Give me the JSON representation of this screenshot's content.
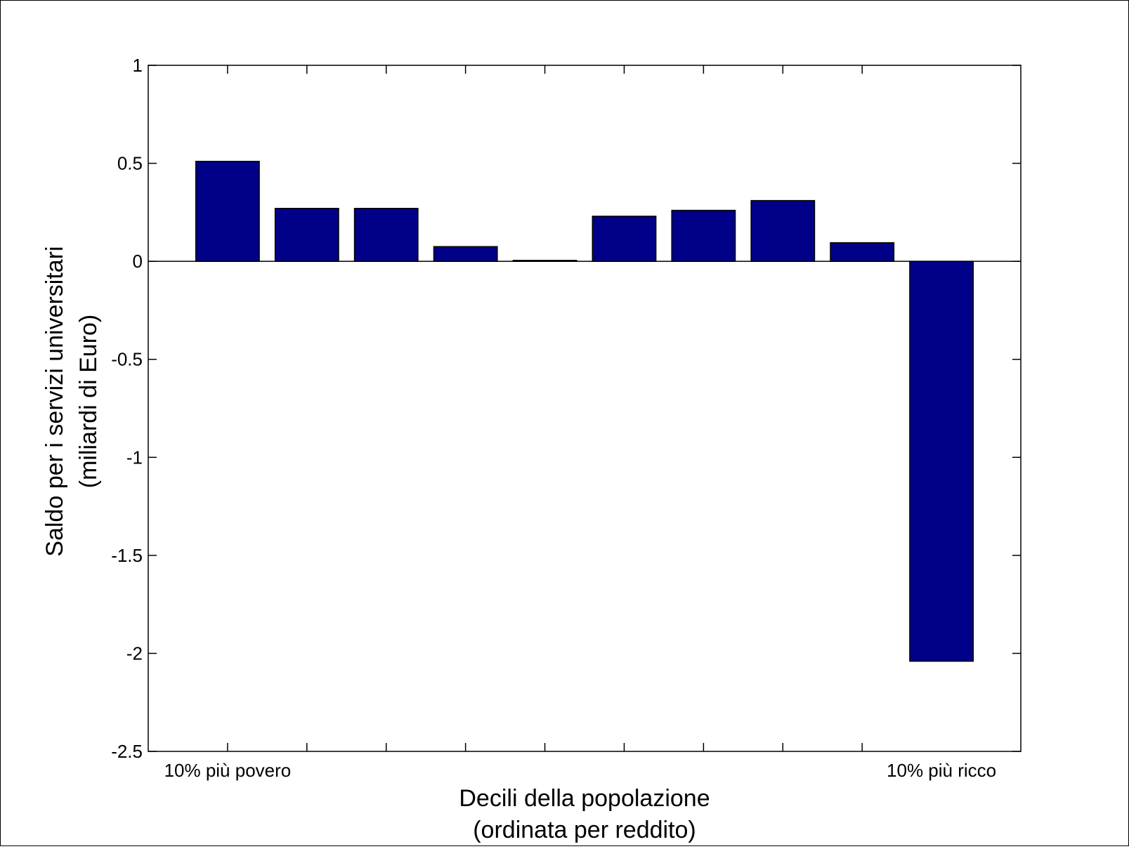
{
  "chart_data": {
    "type": "bar",
    "categories": [
      "1",
      "2",
      "3",
      "4",
      "5",
      "6",
      "7",
      "8",
      "9",
      "10"
    ],
    "values": [
      0.51,
      0.27,
      0.27,
      0.075,
      0.005,
      0.23,
      0.26,
      0.31,
      0.095,
      -2.04
    ],
    "xlabel_lines": [
      "Decili della popolazione",
      "(ordinata per reddito)"
    ],
    "ylabel_lines": [
      "Saldo per i servizi universitari",
      "(miliardi di Euro)"
    ],
    "xtick_labels": [
      {
        "category_index": 0,
        "text": "10% più povero"
      },
      {
        "category_index": 9,
        "text": "10% più ricco"
      }
    ],
    "x_ticks_between": [
      0,
      1,
      2,
      3,
      4,
      5,
      6,
      7,
      8
    ],
    "ylim": [
      -2.5,
      1
    ],
    "yticks": [
      1,
      0.5,
      0,
      -0.5,
      -1,
      -1.5,
      -2,
      -2.5
    ],
    "ytick_labels": [
      "1",
      "0.5",
      "0",
      "-0.5",
      "-1",
      "-1.5",
      "-2",
      "-2.5"
    ],
    "bar_color": "#000088",
    "grid": false,
    "legend": false
  }
}
